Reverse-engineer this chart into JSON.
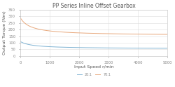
{
  "title": "PP Series Inline Offset Gearbox",
  "xlabel": "Input Speed r/min",
  "ylabel": "Output Torque (Nm)",
  "xlim": [
    0,
    5000
  ],
  "ylim": [
    0,
    350
  ],
  "xticks": [
    0,
    1000,
    2000,
    3000,
    4000,
    5000
  ],
  "yticks": [
    0,
    50,
    100,
    150,
    200,
    250,
    300,
    350
  ],
  "series": [
    {
      "label": "20:1",
      "color": "#7fb3d3",
      "peak_torque": 110,
      "floor_torque": 55,
      "decay": 400
    },
    {
      "label": "70:1",
      "color": "#e8a87c",
      "peak_torque": 290,
      "floor_torque": 155,
      "decay": 350
    }
  ],
  "background_color": "#ffffff",
  "grid_color": "#dddddd",
  "title_fontsize": 5.5,
  "axis_label_fontsize": 4.5,
  "tick_fontsize": 3.8,
  "legend_fontsize": 3.5
}
